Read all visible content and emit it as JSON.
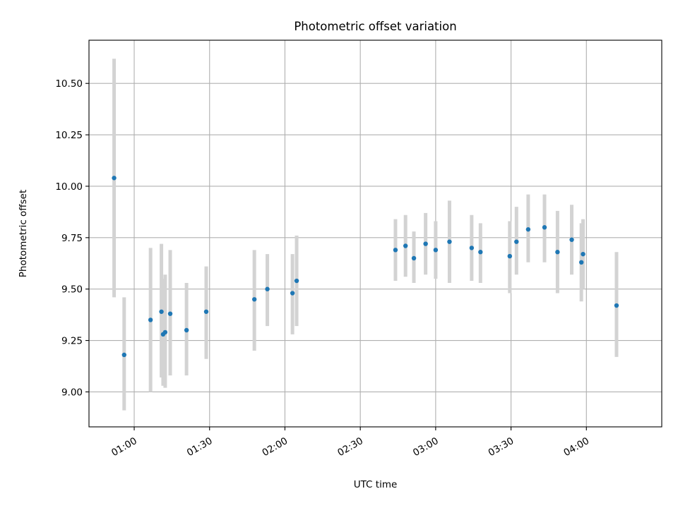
{
  "chart_data": {
    "type": "scatter",
    "title": "Photometric offset variation",
    "xlabel": "UTC time",
    "ylabel": "Photometric offset",
    "x_unit": "UTC HH:MM",
    "xlim": [
      "00:42",
      "04:30"
    ],
    "ylim": [
      8.83,
      10.71
    ],
    "x_ticks": [
      "01:00",
      "01:30",
      "02:00",
      "02:30",
      "03:00",
      "03:30",
      "04:00"
    ],
    "y_ticks": [
      9.0,
      9.25,
      9.5,
      9.75,
      10.0,
      10.25,
      10.5
    ],
    "y_tick_labels": [
      "9.00",
      "9.25",
      "9.50",
      "9.75",
      "10.00",
      "10.25",
      "10.50"
    ],
    "grid": true,
    "marker_color": "#1f77b4",
    "errorbar_color": "#d3d3d3",
    "series": [
      {
        "points": [
          {
            "x": "00:52:00",
            "y": 10.04,
            "ymin": 9.46,
            "ymax": 10.62
          },
          {
            "x": "00:56:00",
            "y": 9.18,
            "ymin": 8.91,
            "ymax": 9.46
          },
          {
            "x": "01:06:30",
            "y": 9.35,
            "ymin": 9.0,
            "ymax": 9.7
          },
          {
            "x": "01:10:50",
            "y": 9.39,
            "ymin": 9.07,
            "ymax": 9.72
          },
          {
            "x": "01:11:30",
            "y": 9.28,
            "ymin": 9.03,
            "ymax": 9.55
          },
          {
            "x": "01:12:20",
            "y": 9.29,
            "ymin": 9.02,
            "ymax": 9.57
          },
          {
            "x": "01:14:20",
            "y": 9.38,
            "ymin": 9.08,
            "ymax": 9.69
          },
          {
            "x": "01:20:50",
            "y": 9.3,
            "ymin": 9.08,
            "ymax": 9.53
          },
          {
            "x": "01:28:40",
            "y": 9.39,
            "ymin": 9.16,
            "ymax": 9.61
          },
          {
            "x": "01:47:50",
            "y": 9.45,
            "ymin": 9.2,
            "ymax": 9.69
          },
          {
            "x": "01:53:00",
            "y": 9.5,
            "ymin": 9.32,
            "ymax": 9.67
          },
          {
            "x": "02:03:00",
            "y": 9.48,
            "ymin": 9.28,
            "ymax": 9.67
          },
          {
            "x": "02:04:40",
            "y": 9.54,
            "ymin": 9.32,
            "ymax": 9.76
          },
          {
            "x": "02:44:00",
            "y": 9.69,
            "ymin": 9.54,
            "ymax": 9.84
          },
          {
            "x": "02:48:00",
            "y": 9.71,
            "ymin": 9.56,
            "ymax": 9.86
          },
          {
            "x": "02:51:20",
            "y": 9.65,
            "ymin": 9.53,
            "ymax": 9.78
          },
          {
            "x": "02:56:00",
            "y": 9.72,
            "ymin": 9.57,
            "ymax": 9.87
          },
          {
            "x": "03:00:00",
            "y": 9.69,
            "ymin": 9.55,
            "ymax": 9.83
          },
          {
            "x": "03:05:30",
            "y": 9.73,
            "ymin": 9.53,
            "ymax": 9.93
          },
          {
            "x": "03:14:20",
            "y": 9.7,
            "ymin": 9.54,
            "ymax": 9.86
          },
          {
            "x": "03:17:50",
            "y": 9.68,
            "ymin": 9.53,
            "ymax": 9.82
          },
          {
            "x": "03:29:30",
            "y": 9.66,
            "ymin": 9.48,
            "ymax": 9.83
          },
          {
            "x": "03:32:10",
            "y": 9.73,
            "ymin": 9.57,
            "ymax": 9.9
          },
          {
            "x": "03:36:50",
            "y": 9.79,
            "ymin": 9.63,
            "ymax": 9.96
          },
          {
            "x": "03:43:20",
            "y": 9.8,
            "ymin": 9.63,
            "ymax": 9.96
          },
          {
            "x": "03:48:30",
            "y": 9.68,
            "ymin": 9.48,
            "ymax": 9.88
          },
          {
            "x": "03:54:10",
            "y": 9.74,
            "ymin": 9.57,
            "ymax": 9.91
          },
          {
            "x": "03:58:00",
            "y": 9.63,
            "ymin": 9.44,
            "ymax": 9.82
          },
          {
            "x": "03:58:40",
            "y": 9.67,
            "ymin": 9.5,
            "ymax": 9.84
          },
          {
            "x": "04:12:00",
            "y": 9.42,
            "ymin": 9.17,
            "ymax": 9.68
          }
        ]
      }
    ]
  }
}
